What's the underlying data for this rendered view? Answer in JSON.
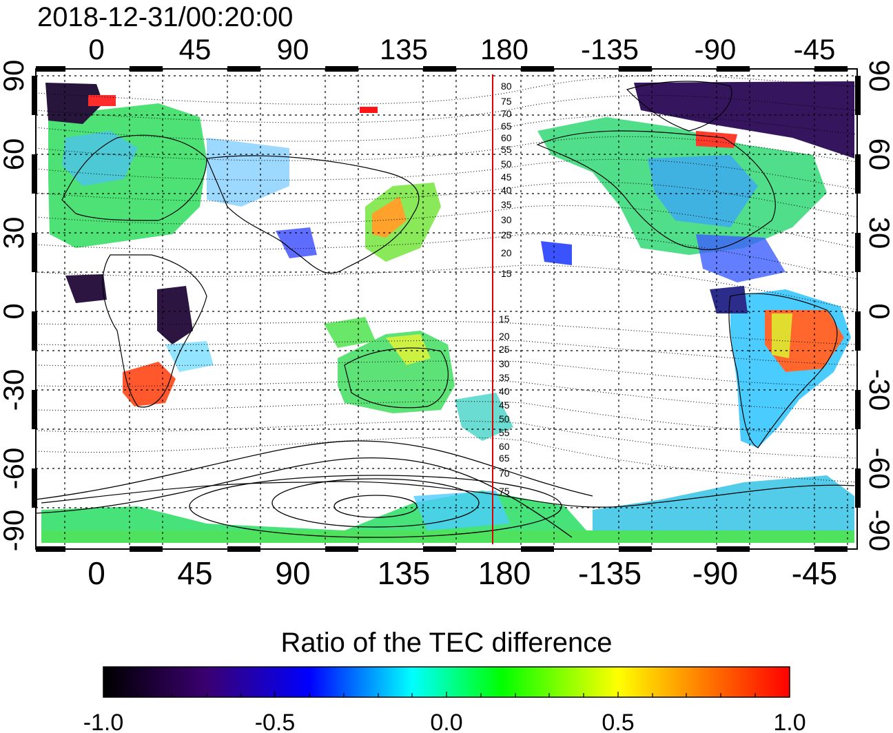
{
  "timestamp": "2018-12-31/00:20:00",
  "map": {
    "lon_ticks": [
      "0",
      "45",
      "90",
      "135",
      "180",
      "-135",
      "-90",
      "-45"
    ],
    "lat_ticks_left": [
      "90",
      "60",
      "30",
      "0",
      "-30",
      "-60",
      "-90"
    ],
    "lat_ticks_right": [
      "90",
      "60",
      "30",
      "0",
      "-30",
      "-60",
      "-90"
    ],
    "terminator_longitude": 175,
    "terminator_color": "#e00000",
    "contour_labels_north": [
      "80",
      "75",
      "70",
      "65",
      "60",
      "55",
      "50",
      "45",
      "40",
      "35",
      "30",
      "25",
      "20",
      "15"
    ],
    "contour_labels_south": [
      "15",
      "20",
      "25",
      "30",
      "35",
      "40",
      "45",
      "50",
      "55",
      "60",
      "65",
      "70",
      "75"
    ]
  },
  "colorbar": {
    "title": "Ratio of the TEC difference",
    "ticks": [
      "-1.0",
      "-0.5",
      "0.0",
      "0.5",
      "1.0"
    ],
    "stops": [
      "#000000",
      "#3a0070",
      "#0000ff",
      "#00ffff",
      "#00ff00",
      "#ffff00",
      "#ff8000",
      "#ff0000"
    ]
  }
}
